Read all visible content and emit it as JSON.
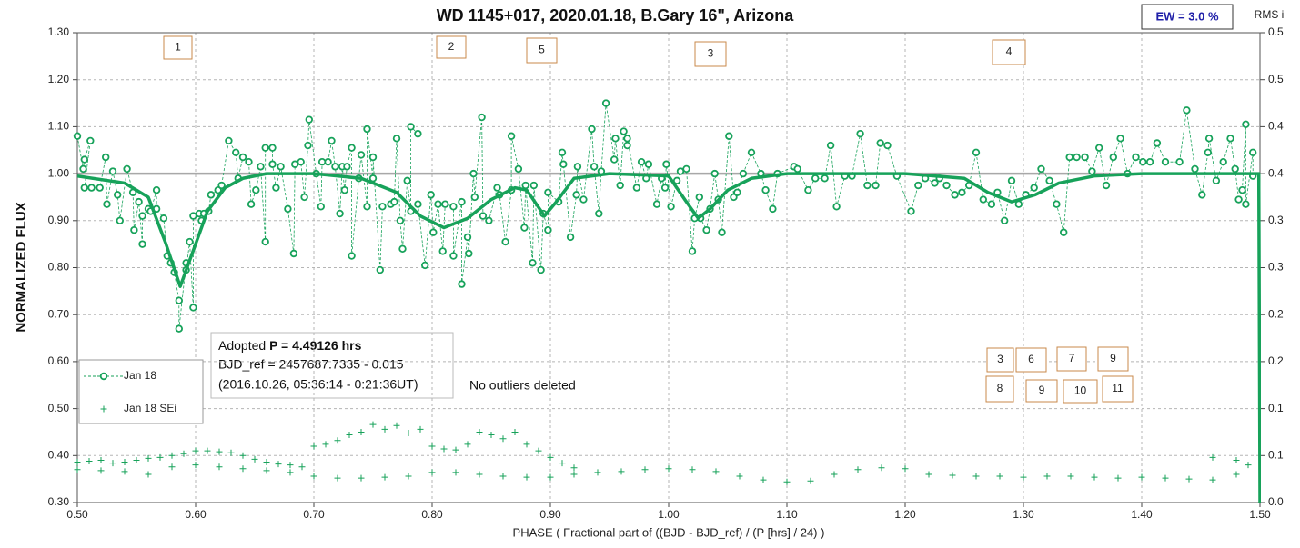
{
  "chart_data": {
    "type": "scatter",
    "title": "WD 1145+017, 2020.01.18, B.Gary 16\", Arizona",
    "xlabel": "PHASE ( Fractional part of ((BJD - BJD_ref) / (P [hrs] / 24) )",
    "ylabel": "NORMALIZED FLUX",
    "y2label": "RMS i",
    "xlim": [
      0.5,
      1.5
    ],
    "ylim": [
      0.3,
      1.3
    ],
    "y2lim": [
      0,
      0.5
    ],
    "xticks": [
      {
        "value": 0.5,
        "label": "0.50"
      },
      {
        "value": 0.6,
        "label": "0.60"
      },
      {
        "value": 0.7,
        "label": "0.70"
      },
      {
        "value": 0.8,
        "label": "0.80"
      },
      {
        "value": 0.9,
        "label": "0.90"
      },
      {
        "value": 1.0,
        "label": "1.00"
      },
      {
        "value": 1.1,
        "label": "1.10"
      },
      {
        "value": 1.2,
        "label": "1.20"
      },
      {
        "value": 1.3,
        "label": "1.30"
      },
      {
        "value": 1.4,
        "label": "1.40"
      },
      {
        "value": 1.5,
        "label": "1.50"
      }
    ],
    "yticks": [
      {
        "value": 0.3,
        "label": "0.30"
      },
      {
        "value": 0.4,
        "label": "0.40"
      },
      {
        "value": 0.5,
        "label": "0.50"
      },
      {
        "value": 0.6,
        "label": "0.60"
      },
      {
        "value": 0.7,
        "label": "0.70"
      },
      {
        "value": 0.8,
        "label": "0.80"
      },
      {
        "value": 0.9,
        "label": "0.90"
      },
      {
        "value": 1.0,
        "label": "1.00"
      },
      {
        "value": 1.1,
        "label": "1.10"
      },
      {
        "value": 1.2,
        "label": "1.20"
      },
      {
        "value": 1.3,
        "label": "1.30"
      }
    ],
    "y2ticks": [
      {
        "value": 0,
        "label": "0.0"
      },
      {
        "value": 0.05,
        "label": "0.1"
      },
      0.1,
      {
        "value": 0.15,
        "label": "0.2"
      },
      0.2,
      {
        "value": 0.25,
        "label": "0.3"
      },
      0.3,
      {
        "value": 0.35,
        "label": "0.4"
      },
      0.4,
      {
        "value": 0.45,
        "label": "0.5"
      },
      0.5
    ],
    "grid": true,
    "reference_line": 1.0,
    "legend": "left",
    "series": [
      {
        "name": "Jan 18",
        "color": "#17a25a",
        "x": [
          0.5,
          0.505,
          0.506,
          0.511,
          0.506,
          0.512,
          0.519,
          0.524,
          0.525,
          0.53,
          0.534,
          0.536,
          0.542,
          0.547,
          0.548,
          0.552,
          0.555,
          0.555,
          0.56,
          0.562,
          0.567,
          0.567,
          0.573,
          0.576,
          0.579,
          0.582,
          0.586,
          0.586,
          0.592,
          0.592,
          0.595,
          0.598,
          0.598,
          0.603,
          0.605,
          0.607,
          0.611,
          0.613,
          0.619,
          0.622,
          0.628,
          0.634,
          0.636,
          0.64,
          0.645,
          0.647,
          0.651,
          0.655,
          0.659,
          0.659,
          0.665,
          0.665,
          0.668,
          0.672,
          0.678,
          0.683,
          0.684,
          0.689,
          0.692,
          0.695,
          0.696,
          0.702,
          0.706,
          0.707,
          0.712,
          0.715,
          0.718,
          0.722,
          0.724,
          0.726,
          0.728,
          0.732,
          0.732,
          0.738,
          0.74,
          0.745,
          0.745,
          0.75,
          0.75,
          0.756,
          0.758,
          0.765,
          0.768,
          0.77,
          0.773,
          0.775,
          0.779,
          0.782,
          0.782,
          0.788,
          0.788,
          0.794,
          0.799,
          0.801,
          0.805,
          0.809,
          0.811,
          0.818,
          0.818,
          0.825,
          0.825,
          0.83,
          0.831,
          0.835,
          0.836,
          0.842,
          0.843,
          0.848,
          0.855,
          0.857,
          0.862,
          0.867,
          0.867,
          0.873,
          0.878,
          0.879,
          0.885,
          0.886,
          0.892,
          0.894,
          0.898,
          0.898,
          0.907,
          0.91,
          0.911,
          0.917,
          0.922,
          0.923,
          0.928,
          0.935,
          0.937,
          0.941,
          0.943,
          0.947,
          0.954,
          0.955,
          0.959,
          0.962,
          0.965,
          0.965,
          0.973,
          0.977,
          0.981,
          0.983,
          0.99,
          0.994,
          0.997,
          0.998,
          1.002,
          1.007,
          1.01,
          1.015,
          1.02,
          1.022,
          1.026,
          1.027,
          1.032,
          1.035,
          1.039,
          1.042,
          1.045,
          1.051,
          1.055,
          1.058,
          1.063,
          1.07,
          1.078,
          1.082,
          1.088,
          1.092,
          1.106,
          1.109,
          1.118,
          1.124,
          1.132,
          1.137,
          1.142,
          1.149,
          1.155,
          1.162,
          1.168,
          1.175,
          1.179,
          1.185,
          1.193,
          1.205,
          1.211,
          1.217,
          1.225,
          1.229,
          1.235,
          1.242,
          1.248,
          1.254,
          1.26,
          1.266,
          1.273,
          1.278,
          1.284,
          1.29,
          1.296,
          1.302,
          1.309,
          1.315,
          1.322,
          1.328,
          1.334,
          1.339,
          1.345,
          1.352,
          1.358,
          1.364,
          1.37,
          1.376,
          1.382,
          1.388,
          1.395,
          1.401,
          1.407,
          1.413,
          1.42,
          1.432,
          1.438,
          1.445,
          1.451,
          1.456,
          1.457,
          1.463,
          1.469,
          1.475,
          1.479,
          1.482,
          1.485,
          1.488,
          1.488,
          1.494,
          1.494
        ],
        "values": [
          1.08,
          1.01,
          1.03,
          1.07,
          0.97,
          0.97,
          0.97,
          1.035,
          0.935,
          1.005,
          0.955,
          0.9,
          1.01,
          0.96,
          0.88,
          0.94,
          0.85,
          0.91,
          0.925,
          0.92,
          0.965,
          0.925,
          0.905,
          0.825,
          0.81,
          0.79,
          0.73,
          0.67,
          0.81,
          0.795,
          0.855,
          0.715,
          0.91,
          0.915,
          0.9,
          0.915,
          0.92,
          0.955,
          0.965,
          0.975,
          1.07,
          1.045,
          0.99,
          1.035,
          1.025,
          0.935,
          0.965,
          1.015,
          0.855,
          1.055,
          1.055,
          1.02,
          0.97,
          1.015,
          0.925,
          0.83,
          1.02,
          1.025,
          0.95,
          1.06,
          1.115,
          1.0,
          0.93,
          1.025,
          1.025,
          1.07,
          1.015,
          0.915,
          1.015,
          0.965,
          1.015,
          1.055,
          0.825,
          0.99,
          1.04,
          0.93,
          1.095,
          0.99,
          1.035,
          0.795,
          0.93,
          0.935,
          0.94,
          1.075,
          0.9,
          0.84,
          0.985,
          0.92,
          1.1,
          1.085,
          0.935,
          0.805,
          0.955,
          0.875,
          0.935,
          0.835,
          0.935,
          0.93,
          0.825,
          0.94,
          0.765,
          0.865,
          0.83,
          1.0,
          0.95,
          1.12,
          0.91,
          0.9,
          0.97,
          0.955,
          0.855,
          0.965,
          1.08,
          1.01,
          0.885,
          0.975,
          0.81,
          0.975,
          0.795,
          0.915,
          0.88,
          0.96,
          0.94,
          1.045,
          1.02,
          0.865,
          0.955,
          1.015,
          0.945,
          1.095,
          1.015,
          0.915,
          1.005,
          1.15,
          1.03,
          1.075,
          0.975,
          1.09,
          1.06,
          1.075,
          0.97,
          1.025,
          0.99,
          1.02,
          0.935,
          0.99,
          0.97,
          1.02,
          0.93,
          0.985,
          1.005,
          1.01,
          0.835,
          0.905,
          0.95,
          0.905,
          0.88,
          0.925,
          1.0,
          0.945,
          0.875,
          1.08,
          0.95,
          0.96,
          1.0,
          1.045,
          1.0,
          0.965,
          0.925,
          1.0,
          1.015,
          1.01,
          0.965,
          0.99,
          0.99,
          1.06,
          0.93,
          0.995,
          0.995,
          1.085,
          0.975,
          0.975,
          1.065,
          1.06,
          0.995,
          0.92,
          0.975,
          0.99,
          0.98,
          0.99,
          0.975,
          0.955,
          0.96,
          0.975,
          1.045,
          0.945,
          0.935,
          0.96,
          0.9,
          0.985,
          0.935,
          0.955,
          0.97,
          1.01,
          0.985,
          0.935,
          0.875,
          1.035,
          1.035,
          1.035,
          1.005,
          1.055,
          0.975,
          1.035,
          1.075,
          1.0,
          1.035,
          1.025,
          1.025,
          1.065,
          1.025,
          1.025,
          1.135,
          1.01,
          0.955,
          1.045,
          1.075,
          0.985,
          1.025,
          1.075,
          1.01,
          0.945,
          0.965,
          1.105,
          0.935,
          1.045,
          0.995
        ]
      },
      {
        "name": "Jan 18 SEi",
        "color": "#17a25a",
        "axis": "y2",
        "x": [
          0.5,
          0.51,
          0.52,
          0.53,
          0.54,
          0.55,
          0.56,
          0.57,
          0.58,
          0.59,
          0.6,
          0.61,
          0.62,
          0.63,
          0.64,
          0.65,
          0.66,
          0.67,
          0.68,
          0.69,
          0.7,
          0.71,
          0.72,
          0.73,
          0.74,
          0.75,
          0.76,
          0.77,
          0.78,
          0.79,
          0.8,
          0.81,
          0.82,
          0.83,
          0.84,
          0.85,
          0.86,
          0.87,
          0.88,
          0.89,
          0.9,
          0.91,
          0.92,
          1.46,
          1.48,
          1.49,
          0.5,
          0.52,
          0.54,
          0.56,
          0.58,
          0.6,
          0.62,
          0.64,
          0.66,
          0.68,
          0.7,
          0.72,
          0.74,
          0.76,
          0.78,
          0.8,
          0.82,
          0.84,
          0.86,
          0.88,
          0.9,
          0.92,
          0.94,
          0.96,
          0.98,
          1.0,
          1.02,
          1.04,
          1.06,
          1.08,
          1.1,
          1.12,
          1.14,
          1.16,
          1.18,
          1.2,
          1.22,
          1.24,
          1.26,
          1.28,
          1.3,
          1.32,
          1.34,
          1.36,
          1.38,
          1.4,
          1.42,
          1.44,
          1.46,
          1.48
        ],
        "values": [
          0.043,
          0.044,
          0.045,
          0.042,
          0.043,
          0.045,
          0.047,
          0.048,
          0.05,
          0.052,
          0.055,
          0.055,
          0.054,
          0.053,
          0.05,
          0.046,
          0.043,
          0.041,
          0.04,
          0.038,
          0.06,
          0.062,
          0.066,
          0.072,
          0.075,
          0.083,
          0.078,
          0.082,
          0.074,
          0.078,
          0.06,
          0.057,
          0.056,
          0.062,
          0.075,
          0.072,
          0.068,
          0.075,
          0.062,
          0.055,
          0.048,
          0.042,
          0.037,
          0.048,
          0.045,
          0.04,
          0.035,
          0.034,
          0.033,
          0.03,
          0.038,
          0.04,
          0.038,
          0.036,
          0.034,
          0.032,
          0.028,
          0.026,
          0.026,
          0.027,
          0.028,
          0.032,
          0.032,
          0.03,
          0.028,
          0.027,
          0.027,
          0.03,
          0.032,
          0.033,
          0.035,
          0.036,
          0.035,
          0.033,
          0.028,
          0.024,
          0.022,
          0.023,
          0.03,
          0.035,
          0.037,
          0.036,
          0.03,
          0.029,
          0.028,
          0.028,
          0.027,
          0.028,
          0.028,
          0.027,
          0.026,
          0.027,
          0.026,
          0.025,
          0.024,
          0.03
        ]
      }
    ],
    "fit": {
      "color": "#17a25a",
      "x": [
        0.5,
        0.54,
        0.56,
        0.575,
        0.587,
        0.6,
        0.61,
        0.625,
        0.64,
        0.66,
        0.7,
        0.74,
        0.77,
        0.79,
        0.81,
        0.83,
        0.85,
        0.87,
        0.88,
        0.895,
        0.905,
        0.92,
        0.95,
        1.0,
        1.015,
        1.025,
        1.035,
        1.05,
        1.07,
        1.1,
        1.2,
        1.25,
        1.27,
        1.29,
        1.31,
        1.33,
        1.36,
        1.4,
        1.499,
        1.5
      ],
      "values": [
        0.995,
        0.98,
        0.95,
        0.85,
        0.76,
        0.85,
        0.92,
        0.97,
        0.99,
        1.0,
        1.0,
        0.99,
        0.96,
        0.91,
        0.885,
        0.905,
        0.945,
        0.97,
        0.965,
        0.91,
        0.94,
        0.99,
        1.0,
        0.995,
        0.94,
        0.905,
        0.925,
        0.965,
        0.99,
        1.0,
        1.0,
        0.99,
        0.96,
        0.94,
        0.955,
        0.98,
        0.995,
        1.0,
        1.0,
        0.3
      ]
    },
    "ew_label": "EW = 3.0 %",
    "info": {
      "prefix": "Adopted",
      "period": "P = 4.49126 hrs",
      "ref": "BJD_ref = 2457687.7335 - 0.015",
      "date": "(2016.10.26, 05:36:14 - 0:21:36UT)"
    },
    "note": "No outliers deleted",
    "markers": [
      "1",
      "2",
      "5",
      "3",
      "4"
    ],
    "markers2": [
      "3",
      "6",
      "7",
      "9",
      "8",
      "9",
      "10",
      "11"
    ]
  }
}
